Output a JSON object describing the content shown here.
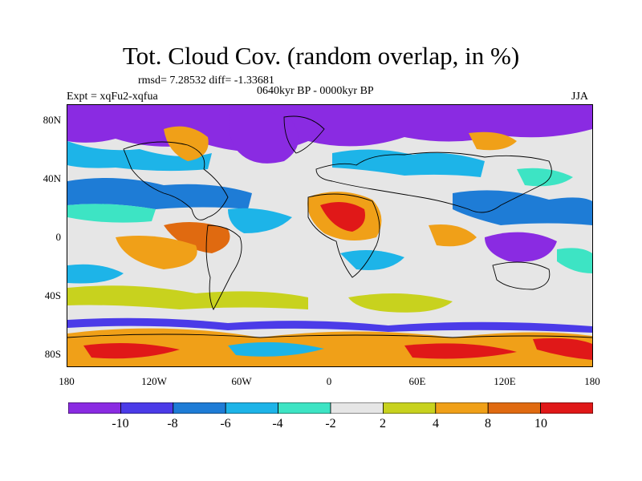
{
  "title": "Tot. Cloud Cov. (random overlap, in %)",
  "stats": "rmsd= 7.28532 diff= -1.33681",
  "period": "0640kyr BP - 0000kyr BP",
  "experiment": "Expt = xqFu2-xqfua",
  "season": "JJA",
  "lat_labels": [
    "80N",
    "40N",
    "0",
    "40S",
    "80S"
  ],
  "lon_labels": [
    "180",
    "120W",
    "60W",
    "0",
    "60E",
    "120E",
    "180"
  ],
  "colorbar": {
    "colors": [
      "#8a2be2",
      "#4b3be8",
      "#1e7cd6",
      "#1db4e8",
      "#3de4c4",
      "#e6e6e6",
      "#c8d21e",
      "#f0a018",
      "#e06a10",
      "#e01818"
    ],
    "labels": [
      "-10",
      "-8",
      "-6",
      "-4",
      "-2",
      "2",
      "4",
      "8",
      "10"
    ]
  }
}
